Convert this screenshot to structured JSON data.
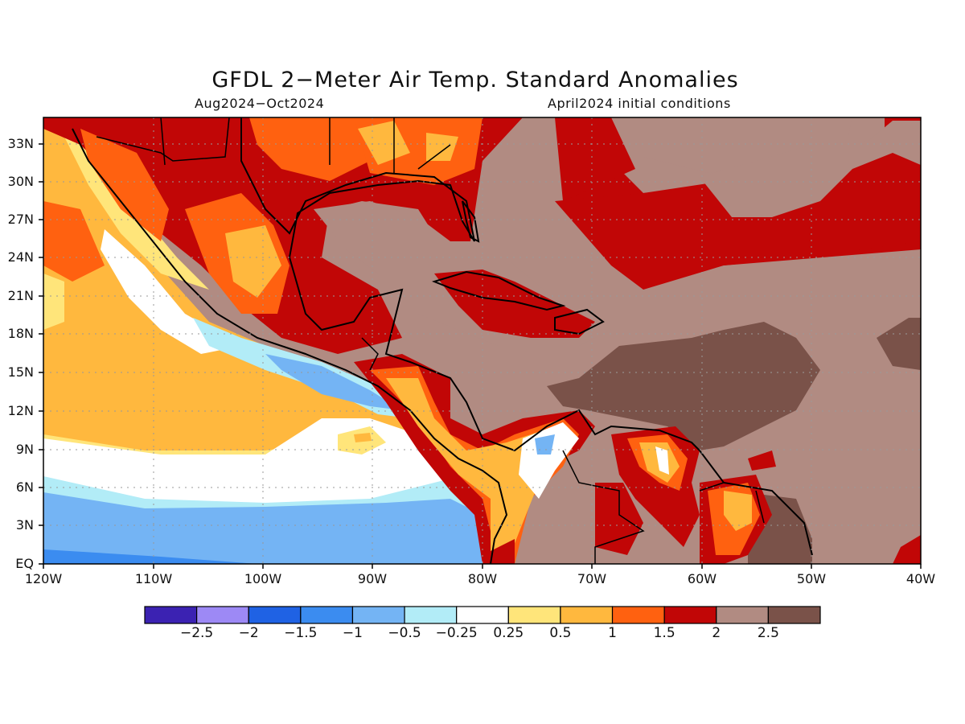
{
  "title": "GFDL 2−Meter Air Temp. Standard Anomalies",
  "subtitle_left": "Aug2024−Oct2024",
  "subtitle_right": "April2024 initial conditions",
  "map": {
    "region": "Caribbean / Central America / Eastern Pacific",
    "lon_range": [
      -120,
      -40
    ],
    "lat_range": [
      0,
      35
    ],
    "grid": "dashed",
    "lat_labels": [
      "33N",
      "30N",
      "27N",
      "24N",
      "21N",
      "18N",
      "15N",
      "12N",
      "9N",
      "6N",
      "3N",
      "EQ"
    ],
    "lon_labels": [
      "120W",
      "110W",
      "100W",
      "90W",
      "80W",
      "70W",
      "60W",
      "50W",
      "40W"
    ]
  },
  "legend": {
    "colors": [
      "#3b22b2",
      "#9d89f5",
      "#1f62e4",
      "#3b8cf0",
      "#74b4f4",
      "#b2ecf7",
      "#ffffff",
      "#ffe57a",
      "#ffb83e",
      "#ff6110",
      "#c10606",
      "#b18b82",
      "#7a5249"
    ],
    "labels": [
      "−2.5",
      "−2",
      "−1.5",
      "−1",
      "−0.5",
      "−0.25",
      "0.25",
      "0.5",
      "1",
      "1.5",
      "2",
      "2.5"
    ]
  }
}
